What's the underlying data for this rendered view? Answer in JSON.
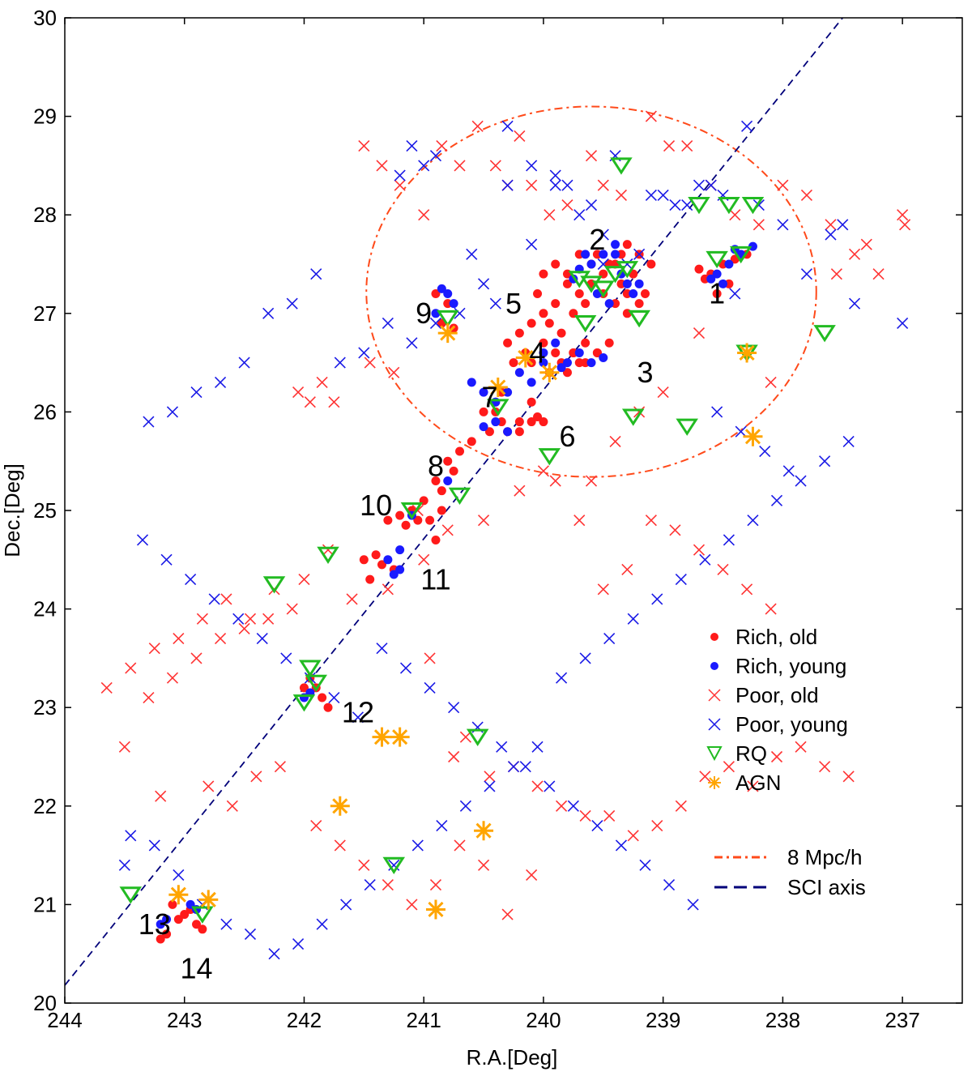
{
  "chart_data": {
    "type": "scatter",
    "xlabel": "R.A.[Deg]",
    "ylabel": "Dec.[Deg]",
    "xlim": [
      244,
      236.5
    ],
    "ylim": [
      20,
      30
    ],
    "x_reversed": true,
    "xticks": [
      244,
      243,
      242,
      241,
      240,
      239,
      238,
      237
    ],
    "yticks": [
      20,
      21,
      22,
      23,
      24,
      25,
      26,
      27,
      28,
      29,
      30
    ],
    "grid": false,
    "legend_position": "lower-right",
    "colors": {
      "rich_old": "#ff1a1a",
      "rich_young": "#1a1aff",
      "poor_old": "#ff3333",
      "poor_young": "#1a1ae6",
      "rq": "#22bb22",
      "agn": "#ffa500",
      "circle": "#ff4a1a",
      "axis_line": "#00007a"
    },
    "series": [
      {
        "name": "Rich, old",
        "marker": "dot",
        "x": [
          239.6,
          239.5,
          239.4,
          239.3,
          239.2,
          239.7,
          239.8,
          239.9,
          240.0,
          240.1,
          239.55,
          239.45,
          239.35,
          239.25,
          239.65,
          239.75,
          239.85,
          239.95,
          240.05,
          239.5,
          239.4,
          239.3,
          239.6,
          239.7,
          239.8,
          239.9,
          240.0,
          239.35,
          239.15,
          239.1,
          239.2,
          239.3,
          239.45,
          239.55,
          239.65,
          239.75,
          240.2,
          240.3,
          240.15,
          240.25,
          240.1,
          239.95,
          239.85,
          239.75,
          239.65,
          239.55,
          240.0,
          239.9,
          239.8,
          239.7,
          240.4,
          240.5,
          240.45,
          240.35,
          240.3,
          240.2,
          240.1,
          240.0,
          240.6,
          240.7,
          240.8,
          240.75,
          240.9,
          240.85,
          241.0,
          241.1,
          241.2,
          241.3,
          241.15,
          241.05,
          241.4,
          241.5,
          241.35,
          241.25,
          241.45,
          240.9,
          240.95,
          240.85,
          241.9,
          241.95,
          241.85,
          241.8,
          242.0,
          243.1,
          243.0,
          242.9,
          242.85,
          243.05,
          242.95,
          243.15,
          243.2,
          238.6,
          238.5,
          238.4,
          238.45,
          238.55,
          238.65,
          238.7,
          238.3,
          240.85,
          240.9,
          240.8,
          240.75,
          240.4,
          240.35,
          240.2,
          240.1,
          240.05
        ],
        "y": [
          27.3,
          27.4,
          27.5,
          27.2,
          27.1,
          27.2,
          27.3,
          27.1,
          27.0,
          26.9,
          27.6,
          27.5,
          27.3,
          27.4,
          27.1,
          27.0,
          26.8,
          26.9,
          27.2,
          27.2,
          27.1,
          27.0,
          27.5,
          27.6,
          27.4,
          27.5,
          27.4,
          27.6,
          27.2,
          27.5,
          27.6,
          27.7,
          26.7,
          26.6,
          26.7,
          26.6,
          26.8,
          26.7,
          26.6,
          26.5,
          26.5,
          26.4,
          26.5,
          26.6,
          26.5,
          26.6,
          26.7,
          26.6,
          26.4,
          26.5,
          26.1,
          26.0,
          25.8,
          25.9,
          25.8,
          25.8,
          25.9,
          25.9,
          25.7,
          25.6,
          25.5,
          25.4,
          25.3,
          25.2,
          25.1,
          25.0,
          24.95,
          24.9,
          24.85,
          24.9,
          24.55,
          24.5,
          24.45,
          24.4,
          24.3,
          24.7,
          24.9,
          25.0,
          23.2,
          23.3,
          23.1,
          23.0,
          23.2,
          21.0,
          20.9,
          20.8,
          20.75,
          20.85,
          20.95,
          20.7,
          20.65,
          27.4,
          27.5,
          27.55,
          27.3,
          27.2,
          27.35,
          27.45,
          27.6,
          26.9,
          27.2,
          27.1,
          26.85,
          26.0,
          26.2,
          25.9,
          26.1,
          25.95
        ]
      },
      {
        "name": "Rich, young",
        "marker": "dot",
        "x": [
          239.6,
          239.5,
          239.4,
          239.3,
          239.7,
          239.55,
          239.45,
          239.35,
          239.25,
          239.65,
          239.75,
          239.2,
          239.4,
          240.0,
          239.9,
          239.8,
          239.7,
          239.6,
          240.1,
          240.2,
          240.3,
          240.0,
          239.85,
          239.5,
          240.4,
          240.5,
          240.6,
          240.5,
          240.4,
          240.3,
          240.8,
          240.85,
          240.9,
          240.75,
          240.8,
          241.1,
          241.2,
          241.3,
          241.25,
          241.2,
          242.0,
          241.95,
          243.2,
          243.15,
          242.9,
          242.95,
          238.5,
          238.45,
          238.55,
          238.6,
          238.35,
          238.4,
          238.25
        ],
        "y": [
          27.5,
          27.6,
          27.7,
          27.3,
          27.45,
          27.2,
          27.1,
          27.4,
          27.2,
          27.6,
          27.35,
          27.3,
          27.6,
          26.6,
          26.7,
          26.5,
          26.6,
          26.5,
          26.3,
          26.4,
          26.2,
          26.5,
          26.45,
          26.55,
          26.1,
          26.2,
          26.3,
          25.85,
          25.9,
          25.8,
          27.2,
          27.25,
          27.0,
          27.1,
          25.3,
          24.95,
          24.6,
          24.5,
          24.35,
          24.4,
          23.1,
          23.15,
          20.8,
          20.85,
          20.95,
          21.0,
          27.3,
          27.5,
          27.4,
          27.35,
          27.6,
          27.65,
          27.68
        ]
      },
      {
        "name": "Poor, old",
        "marker": "x",
        "x": [
          241.5,
          241.35,
          241.2,
          241.0,
          240.85,
          240.7,
          240.55,
          240.4,
          240.3,
          240.2,
          240.1,
          239.95,
          239.8,
          239.6,
          239.5,
          239.35,
          239.1,
          238.95,
          238.8,
          238.6,
          238.4,
          238.2,
          238.0,
          237.8,
          237.6,
          237.4,
          237.0,
          236.98,
          237.3,
          237.55,
          237.2,
          238.1,
          238.3,
          238.7,
          239.0,
          239.2,
          239.4,
          239.6,
          240.0,
          240.2,
          240.5,
          240.8,
          241.0,
          241.3,
          241.6,
          241.8,
          242.0,
          242.1,
          242.3,
          242.5,
          242.7,
          242.9,
          243.1,
          243.3,
          243.5,
          243.2,
          242.8,
          242.6,
          242.4,
          242.2,
          241.9,
          241.7,
          241.5,
          241.3,
          241.1,
          240.9,
          240.7,
          240.5,
          240.3,
          240.1,
          239.9,
          239.7,
          239.5,
          239.3,
          239.1,
          238.9,
          238.7,
          238.5,
          238.3,
          238.1,
          241.45,
          241.25,
          241.05,
          240.95,
          240.75,
          240.65,
          240.45,
          240.25,
          240.05,
          239.85,
          239.65,
          239.45,
          239.25,
          239.05,
          238.85,
          238.65,
          238.45,
          238.25,
          238.05,
          237.85,
          237.65,
          237.45,
          242.05,
          241.95,
          241.85,
          241.75,
          242.25,
          242.45,
          242.65,
          242.85,
          243.05,
          243.25,
          243.45,
          243.65
        ],
        "y": [
          28.7,
          28.5,
          28.3,
          28.0,
          28.7,
          28.5,
          28.9,
          28.5,
          28.3,
          28.8,
          28.3,
          28.0,
          28.1,
          28.6,
          28.3,
          28.2,
          29.0,
          28.7,
          28.7,
          28.3,
          28.0,
          27.9,
          28.3,
          28.2,
          27.9,
          27.6,
          28.0,
          27.9,
          27.7,
          27.4,
          27.4,
          26.3,
          26.6,
          26.8,
          26.2,
          26.0,
          25.7,
          25.3,
          25.4,
          25.2,
          24.9,
          24.8,
          24.5,
          24.2,
          24.1,
          24.6,
          24.3,
          24.0,
          23.9,
          23.8,
          23.7,
          23.5,
          23.3,
          23.1,
          22.6,
          22.1,
          22.2,
          22.0,
          22.3,
          22.4,
          21.8,
          21.6,
          21.4,
          21.2,
          21.0,
          21.2,
          21.6,
          21.4,
          20.9,
          21.3,
          25.3,
          24.9,
          24.2,
          24.4,
          24.9,
          24.8,
          24.6,
          24.4,
          24.2,
          24.0,
          26.5,
          26.4,
          25.0,
          23.5,
          22.5,
          22.7,
          22.3,
          22.4,
          22.2,
          22.0,
          21.9,
          21.9,
          21.7,
          21.8,
          22.0,
          22.3,
          22.4,
          22.2,
          22.5,
          22.6,
          22.4,
          22.3,
          26.2,
          26.1,
          26.3,
          26.1,
          24.2,
          23.9,
          24.1,
          23.9,
          23.7,
          23.6,
          23.4,
          23.2
        ]
      },
      {
        "name": "Poor, young",
        "marker": "x",
        "x": [
          241.2,
          241.1,
          241.0,
          240.9,
          240.6,
          240.4,
          240.3,
          240.1,
          239.9,
          239.8,
          239.6,
          239.5,
          239.4,
          239.2,
          239.0,
          238.8,
          238.6,
          238.4,
          238.2,
          238.0,
          237.8,
          237.6,
          237.5,
          237.4,
          237.0,
          238.3,
          238.5,
          238.7,
          238.9,
          239.1,
          239.3,
          239.5,
          239.7,
          239.9,
          240.1,
          240.3,
          240.5,
          240.7,
          240.9,
          241.1,
          241.3,
          241.5,
          241.7,
          241.9,
          242.1,
          242.3,
          242.5,
          242.7,
          242.9,
          243.1,
          243.3,
          243.5,
          243.45,
          243.25,
          243.05,
          242.85,
          242.65,
          242.45,
          242.25,
          242.05,
          241.85,
          241.65,
          241.45,
          241.25,
          241.05,
          240.85,
          240.65,
          240.45,
          240.25,
          240.05,
          239.85,
          239.65,
          239.45,
          239.25,
          239.05,
          238.85,
          238.65,
          238.45,
          238.25,
          238.05,
          237.85,
          237.65,
          237.45,
          241.35,
          241.15,
          240.95,
          240.75,
          240.55,
          240.35,
          240.15,
          239.95,
          239.75,
          239.55,
          239.35,
          239.15,
          238.95,
          238.75,
          238.55,
          238.35,
          238.15,
          237.95,
          241.55,
          241.75,
          241.95,
          242.15,
          242.35,
          242.55,
          242.75,
          242.95,
          243.15,
          243.35
        ],
        "y": [
          28.4,
          28.7,
          28.5,
          28.6,
          27.6,
          27.1,
          28.9,
          27.7,
          28.4,
          28.3,
          28.1,
          27.5,
          28.6,
          27.6,
          28.2,
          28.1,
          28.3,
          27.2,
          28.1,
          27.9,
          27.4,
          27.8,
          27.9,
          27.1,
          26.9,
          28.9,
          28.2,
          28.3,
          28.1,
          28.2,
          27.5,
          27.8,
          28.0,
          28.3,
          28.5,
          28.3,
          27.3,
          27.0,
          26.9,
          26.7,
          26.9,
          26.6,
          26.5,
          27.4,
          27.1,
          27.0,
          26.5,
          26.3,
          26.2,
          26.0,
          25.9,
          21.4,
          21.7,
          21.6,
          21.3,
          21.0,
          20.8,
          20.7,
          20.5,
          20.6,
          20.8,
          21.0,
          21.2,
          21.4,
          21.6,
          21.8,
          22.0,
          22.2,
          22.4,
          22.6,
          23.3,
          23.5,
          23.7,
          23.9,
          24.1,
          24.3,
          24.5,
          24.7,
          24.9,
          25.1,
          25.3,
          25.5,
          25.7,
          23.6,
          23.4,
          23.2,
          23.0,
          22.8,
          22.6,
          22.4,
          22.2,
          22.0,
          21.8,
          21.6,
          21.4,
          21.2,
          21.0,
          26.0,
          25.8,
          25.6,
          25.4,
          22.9,
          23.1,
          23.3,
          23.5,
          23.7,
          23.9,
          24.1,
          24.3,
          24.5,
          24.7
        ]
      },
      {
        "name": "RQ",
        "marker": "triangle-down",
        "x": [
          239.6,
          239.5,
          239.4,
          239.3,
          239.7,
          239.2,
          239.35,
          238.7,
          238.45,
          238.25,
          238.35,
          238.55,
          239.65,
          239.2,
          238.3,
          237.65,
          238.8,
          239.25,
          239.95,
          240.8,
          240.38,
          240.7,
          241.1,
          241.8,
          242.25,
          241.95,
          242.0,
          241.9,
          241.25,
          240.55,
          243.45,
          242.85
        ],
        "y": [
          27.3,
          27.25,
          27.4,
          27.45,
          27.35,
          26.95,
          28.5,
          28.1,
          28.1,
          28.1,
          27.6,
          27.55,
          26.9,
          26.95,
          26.6,
          26.8,
          25.85,
          25.95,
          25.55,
          26.95,
          26.05,
          25.15,
          25.0,
          24.55,
          24.25,
          23.4,
          23.05,
          23.25,
          21.4,
          22.7,
          21.1,
          20.9
        ]
      },
      {
        "name": "AGN",
        "marker": "asterisk",
        "x": [
          240.8,
          240.38,
          240.15,
          239.95,
          238.3,
          238.25,
          241.35,
          241.2,
          241.7,
          240.5,
          240.9,
          243.05,
          242.8
        ],
        "y": [
          26.8,
          26.25,
          26.55,
          26.4,
          26.6,
          25.75,
          22.7,
          22.7,
          22.0,
          21.75,
          20.95,
          21.1,
          21.05
        ]
      }
    ],
    "circle": {
      "name": "8 Mpc/h",
      "center_ra": 239.6,
      "center_dec": 27.22,
      "radius_deg": 1.88
    },
    "sci_axis": {
      "name": "SCI axis",
      "x": [
        244,
        237.5
      ],
      "y": [
        20.18,
        30
      ]
    },
    "annotations": [
      {
        "text": "1",
        "x": 238.55,
        "y": 27.1
      },
      {
        "text": "2",
        "x": 239.55,
        "y": 27.65
      },
      {
        "text": "3",
        "x": 239.15,
        "y": 26.3
      },
      {
        "text": "4",
        "x": 240.05,
        "y": 26.5
      },
      {
        "text": "5",
        "x": 240.25,
        "y": 27.0
      },
      {
        "text": "6",
        "x": 239.8,
        "y": 25.65
      },
      {
        "text": "7",
        "x": 240.45,
        "y": 26.05
      },
      {
        "text": "8",
        "x": 240.9,
        "y": 25.35
      },
      {
        "text": "9",
        "x": 241.0,
        "y": 26.9
      },
      {
        "text": "10",
        "x": 241.4,
        "y": 24.95
      },
      {
        "text": "11",
        "x": 240.9,
        "y": 24.2
      },
      {
        "text": "12",
        "x": 241.55,
        "y": 22.85
      },
      {
        "text": "13",
        "x": 243.25,
        "y": 20.7
      },
      {
        "text": "14",
        "x": 242.9,
        "y": 20.25
      }
    ]
  },
  "legend": {
    "items": [
      "Rich, old",
      "Rich, young",
      "Poor, old",
      "Poor, young",
      "RQ",
      "AGN"
    ],
    "lines": [
      "8 Mpc/h",
      "SCI axis"
    ]
  }
}
